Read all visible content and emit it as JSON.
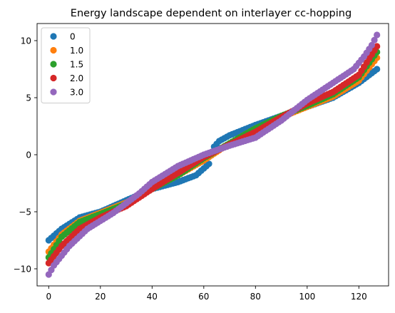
{
  "chart_data": {
    "type": "scatter",
    "title": "Energy landscape dependent on interlayer cc-hopping",
    "xlabel": "",
    "ylabel": "",
    "xlim": [
      -4.5,
      131.5
    ],
    "ylim": [
      -11.5,
      11.5
    ],
    "xticks": [
      0,
      20,
      40,
      60,
      80,
      100,
      120
    ],
    "yticks": [
      -10,
      -5,
      0,
      5,
      10
    ],
    "grid": false,
    "legend_position": "top-left",
    "n_points": 128,
    "series": [
      {
        "name": "0",
        "color": "#1f77b4",
        "control_x": [
          0,
          5,
          12,
          20,
          30,
          40,
          50,
          57,
          60,
          62,
          64,
          66,
          70,
          80,
          90,
          100,
          110,
          120,
          127
        ],
        "control_y": [
          -7.5,
          -6.5,
          -5.5,
          -5.0,
          -4.0,
          -3.0,
          -2.4,
          -1.8,
          -1.2,
          -0.8,
          0.7,
          1.2,
          1.7,
          2.6,
          3.4,
          4.2,
          5.0,
          6.3,
          7.5
        ]
      },
      {
        "name": "1.0",
        "color": "#ff7f0e",
        "control_x": [
          0,
          5,
          12,
          20,
          30,
          40,
          50,
          60,
          70,
          80,
          90,
          100,
          110,
          120,
          127
        ],
        "control_y": [
          -8.5,
          -7.0,
          -5.8,
          -5.1,
          -4.2,
          -3.0,
          -1.8,
          -0.5,
          1.0,
          2.3,
          3.3,
          4.2,
          5.1,
          6.5,
          8.5
        ]
      },
      {
        "name": "1.5",
        "color": "#2ca02c",
        "control_x": [
          0,
          5,
          12,
          20,
          30,
          40,
          50,
          60,
          70,
          80,
          90,
          100,
          110,
          120,
          127
        ],
        "control_y": [
          -9.0,
          -7.2,
          -5.9,
          -5.2,
          -4.3,
          -3.0,
          -1.8,
          -0.3,
          1.0,
          2.3,
          3.4,
          4.3,
          5.3,
          6.8,
          9.0
        ]
      },
      {
        "name": "2.0",
        "color": "#d62728",
        "control_x": [
          0,
          5,
          12,
          20,
          30,
          40,
          50,
          60,
          70,
          80,
          90,
          100,
          110,
          120,
          127
        ],
        "control_y": [
          -9.5,
          -8.0,
          -6.5,
          -5.5,
          -4.5,
          -3.0,
          -1.6,
          -0.2,
          0.9,
          2.0,
          3.3,
          4.5,
          5.5,
          7.0,
          9.5
        ]
      },
      {
        "name": "3.0",
        "color": "#9467bd",
        "control_x": [
          0,
          2,
          8,
          15,
          25,
          35,
          40,
          50,
          60,
          70,
          80,
          90,
          100,
          110,
          118,
          122,
          125,
          127
        ],
        "control_y": [
          -10.5,
          -9.7,
          -8.0,
          -6.5,
          -5.1,
          -3.4,
          -2.4,
          -1.0,
          0.0,
          0.8,
          1.5,
          3.0,
          4.8,
          6.3,
          7.5,
          8.6,
          9.6,
          10.5
        ]
      }
    ]
  }
}
